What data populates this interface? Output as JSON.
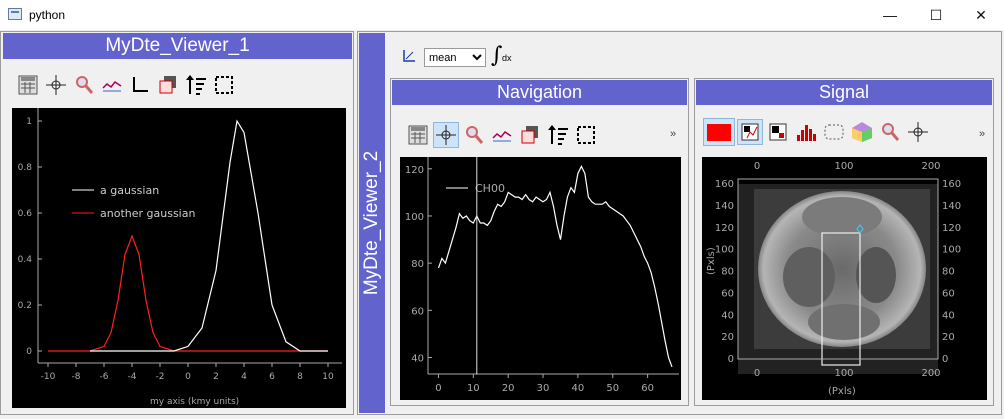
{
  "window": {
    "title": "python",
    "minimize": "—",
    "maximize": "☐",
    "close": "✕"
  },
  "viewer1": {
    "title": "MyDte_Viewer_1",
    "legend": [
      "a gaussian",
      "another gaussian"
    ],
    "xlabel": "my axis (kmy units)",
    "xticks": [
      "-10",
      "-8",
      "-6",
      "-4",
      "-2",
      "0",
      "2",
      "4",
      "6",
      "8",
      "10"
    ],
    "yticks": [
      "1",
      "0.8",
      "0.6",
      "0.4",
      "0.2",
      "0"
    ]
  },
  "viewer2": {
    "title": "MyDte_Viewer_2",
    "mode_select": "mean",
    "mode_options": [
      "mean"
    ],
    "integral_label": "dx"
  },
  "navigation": {
    "title": "Navigation",
    "legend": "CH00",
    "xticks": [
      "0",
      "10",
      "20",
      "30",
      "40",
      "50",
      "60"
    ],
    "yticks": [
      "120",
      "100",
      "80",
      "60",
      "40"
    ],
    "more": "»"
  },
  "signal": {
    "title": "Signal",
    "xticks_top": [
      "0",
      "100",
      "200"
    ],
    "yticks": [
      "160",
      "140",
      "120",
      "100",
      "80",
      "60",
      "40",
      "20",
      "0"
    ],
    "xlabel": "(Pxls)",
    "ylabel": "(Pxls)",
    "more": "»",
    "accent_color": "#ff0000"
  },
  "colors": {
    "dock_title": "#6363ce",
    "plot_bg": "#000000",
    "trace_red": "#ff2020"
  },
  "chart_data": [
    {
      "type": "line",
      "series": [
        {
          "name": "a gaussian",
          "x": [
            -7,
            -6,
            -5,
            -4,
            -3,
            -2,
            -1,
            0,
            1,
            2,
            3,
            3.5,
            4,
            5,
            6,
            7,
            8,
            9,
            10
          ],
          "y": [
            0,
            0,
            0,
            0,
            0,
            0,
            0,
            0.02,
            0.1,
            0.35,
            0.82,
            1,
            0.95,
            0.6,
            0.2,
            0.04,
            0,
            0,
            0
          ]
        },
        {
          "name": "another gaussian",
          "x": [
            -10,
            -8,
            -7,
            -6,
            -5.5,
            -5,
            -4.5,
            -4,
            -3.5,
            -3,
            -2.5,
            -2,
            -1,
            0,
            2,
            4,
            6,
            8,
            10
          ],
          "y": [
            0,
            0,
            0,
            0.02,
            0.08,
            0.22,
            0.42,
            0.5,
            0.42,
            0.22,
            0.08,
            0.02,
            0,
            0,
            0,
            0,
            0,
            0,
            0
          ]
        }
      ],
      "xlim": [
        -10,
        10
      ],
      "ylim": [
        0,
        1
      ],
      "xlabel": "my axis (kmy units)"
    },
    {
      "type": "line",
      "series": [
        {
          "name": "CH00",
          "x": [
            0,
            1,
            2,
            3,
            4,
            5,
            6,
            7,
            8,
            9,
            10,
            11,
            12,
            13,
            14,
            15,
            16,
            17,
            18,
            19,
            20,
            21,
            22,
            23,
            24,
            25,
            26,
            27,
            28,
            29,
            30,
            31,
            32,
            33,
            34,
            35,
            36,
            37,
            38,
            39,
            40,
            41,
            42,
            43,
            44,
            45,
            46,
            47,
            48,
            49,
            50,
            51,
            52,
            53,
            54,
            55,
            56,
            57,
            58,
            59,
            60,
            61,
            62,
            63,
            64,
            65,
            66,
            67
          ],
          "y": [
            78,
            82,
            80,
            85,
            90,
            95,
            101,
            99,
            100,
            98,
            97,
            100,
            97,
            97,
            96,
            98,
            102,
            105,
            104,
            106,
            110,
            109,
            108,
            108,
            107,
            109,
            107,
            106,
            108,
            107,
            106,
            107,
            110,
            104,
            96,
            90,
            100,
            108,
            112,
            110,
            118,
            121,
            118,
            108,
            106,
            105,
            105,
            105,
            106,
            104,
            103,
            102,
            101,
            100,
            98,
            96,
            93,
            90,
            87,
            83,
            80,
            76,
            70,
            63,
            55,
            47,
            40,
            36
          ]
        }
      ],
      "xlim": [
        -3,
        69
      ],
      "ylim": [
        33,
        125
      ],
      "cursor_x": 11
    }
  ]
}
